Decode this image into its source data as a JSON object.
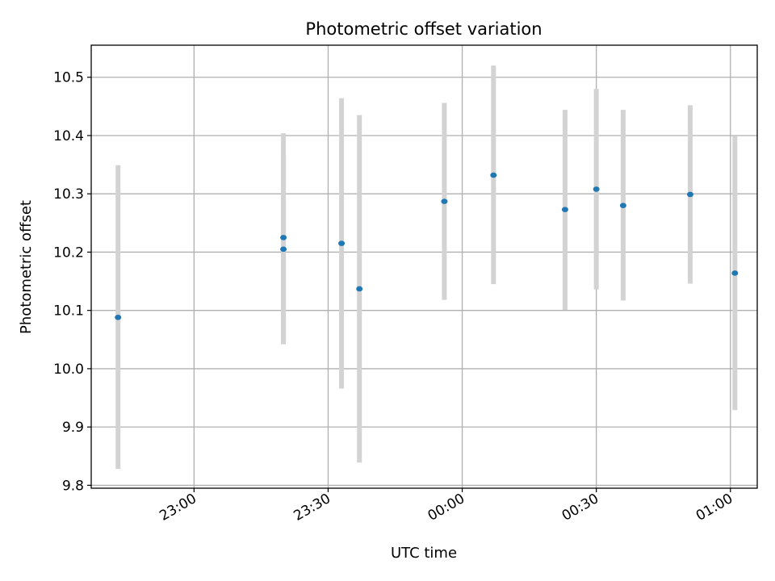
{
  "chart_data": {
    "type": "scatter",
    "title": "Photometric offset variation",
    "xlabel": "UTC time",
    "ylabel": "Photometric offset",
    "x_axis_type": "time",
    "x_range_utc": [
      "22:37",
      "01:06"
    ],
    "ylim": [
      9.795,
      10.555
    ],
    "grid": true,
    "legend": "none",
    "x_tick_labels": [
      "23:00",
      "23:30",
      "00:00",
      "00:30",
      "01:00"
    ],
    "y_tick_labels": [
      "9.8",
      "9.9",
      "10.0",
      "10.1",
      "10.2",
      "10.3",
      "10.4",
      "10.5"
    ],
    "y_ticks": [
      9.8,
      9.9,
      10.0,
      10.1,
      10.2,
      10.3,
      10.4,
      10.5
    ],
    "x_ticks_utc": [
      "23:00",
      "23:30",
      "00:00",
      "00:30",
      "01:00"
    ],
    "series": [
      {
        "points": [
          {
            "x": "22:43",
            "y": 10.088,
            "yerr_low": 9.828,
            "yerr_high": 10.349
          },
          {
            "x": "23:20",
            "y": 10.205,
            "yerr_low": 10.042,
            "yerr_high": 10.368
          },
          {
            "x": "23:20",
            "y": 10.225,
            "yerr_low": 10.046,
            "yerr_high": 10.404
          },
          {
            "x": "23:33",
            "y": 10.215,
            "yerr_low": 9.966,
            "yerr_high": 10.464
          },
          {
            "x": "23:37",
            "y": 10.137,
            "yerr_low": 9.839,
            "yerr_high": 10.435
          },
          {
            "x": "23:56",
            "y": 10.287,
            "yerr_low": 10.118,
            "yerr_high": 10.456
          },
          {
            "x": "00:07",
            "y": 10.332,
            "yerr_low": 10.145,
            "yerr_high": 10.52
          },
          {
            "x": "00:23",
            "y": 10.273,
            "yerr_low": 10.101,
            "yerr_high": 10.444
          },
          {
            "x": "00:30",
            "y": 10.308,
            "yerr_low": 10.136,
            "yerr_high": 10.48
          },
          {
            "x": "00:36",
            "y": 10.28,
            "yerr_low": 10.117,
            "yerr_high": 10.444
          },
          {
            "x": "00:51",
            "y": 10.299,
            "yerr_low": 10.146,
            "yerr_high": 10.452
          },
          {
            "x": "01:01",
            "y": 10.164,
            "yerr_low": 9.929,
            "yerr_high": 10.399
          }
        ]
      }
    ]
  },
  "colors": {
    "point": "#1f77b4",
    "errorbar": "#d3d3d3",
    "grid": "#b0b0b0",
    "axes": "#000000"
  }
}
